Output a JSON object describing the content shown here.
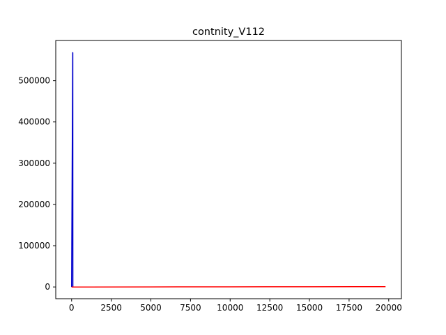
{
  "chart_data": {
    "type": "line",
    "title": "contnity_V112",
    "xlabel": "",
    "ylabel": "",
    "xlim": [
      -1000,
      20800
    ],
    "ylim": [
      -28500,
      597500
    ],
    "xticks": [
      0,
      2500,
      5000,
      7500,
      10000,
      12500,
      15000,
      17500,
      20000
    ],
    "xtick_labels": [
      "0",
      "2500",
      "5000",
      "7500",
      "10000",
      "12500",
      "15000",
      "17500",
      "20000"
    ],
    "yticks": [
      0,
      100000,
      200000,
      300000,
      400000,
      500000
    ],
    "ytick_labels": [
      "0",
      "100000",
      "200000",
      "300000",
      "400000",
      "500000"
    ],
    "grid": false,
    "legend": false,
    "series": [
      {
        "color": "#0000cc",
        "x": [
          0,
          0,
          70,
          75,
          80
        ],
        "y": [
          0,
          0,
          568000,
          568000,
          0
        ]
      },
      {
        "color": "#ff0000",
        "x": [
          0,
          5000,
          10000,
          15000,
          19800
        ],
        "y": [
          -200,
          100,
          300,
          500,
          700
        ]
      }
    ]
  }
}
